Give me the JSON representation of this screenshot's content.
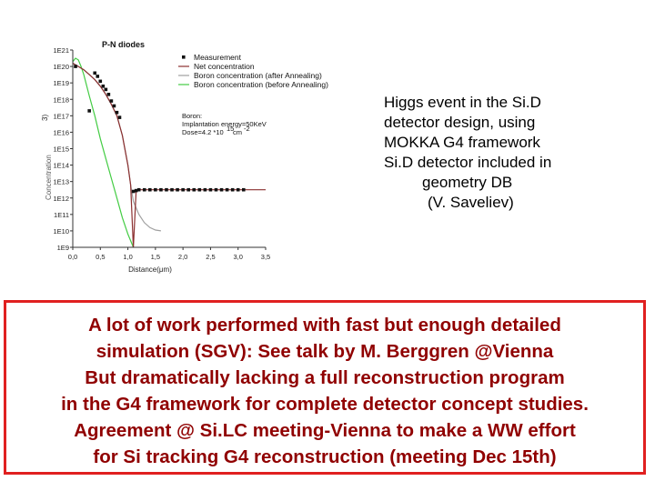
{
  "chart_data": {
    "type": "line",
    "title": "P-N diodes",
    "xlabel": "Distance(μm)",
    "ylabel": "Concentration",
    "ylabel_fragment": "3)",
    "xlim": [
      0.0,
      3.5
    ],
    "ylim_log10": [
      9,
      21
    ],
    "x_ticks": [
      "0,0",
      "0,5",
      "1,0",
      "1,5",
      "2,0",
      "2,5",
      "3,0",
      "3,5"
    ],
    "y_ticks": [
      "1E21",
      "1E20",
      "1E19",
      "1E18",
      "1E17",
      "1E16",
      "1E15",
      "1E14",
      "1E13",
      "1E12",
      "1E11",
      "1E10",
      "1E9"
    ],
    "legend_placement": "top-right",
    "series": [
      {
        "name": "Measurement",
        "kind": "points",
        "color": "#111111",
        "x": [
          0.05,
          0.3,
          0.4,
          0.45,
          0.5,
          0.55,
          0.6,
          0.65,
          0.7,
          0.75,
          0.8,
          0.85,
          1.1,
          1.15,
          1.2,
          1.3,
          1.4,
          1.5,
          1.6,
          1.7,
          1.8,
          1.9,
          2.0,
          2.1,
          2.2,
          2.3,
          2.4,
          2.5,
          2.6,
          2.7,
          2.8,
          2.9,
          3.0,
          3.1
        ],
        "y_log10": [
          20.0,
          17.3,
          19.6,
          19.4,
          19.1,
          18.8,
          18.6,
          18.3,
          17.9,
          17.6,
          17.2,
          16.9,
          12.4,
          12.45,
          12.5,
          12.5,
          12.5,
          12.5,
          12.5,
          12.5,
          12.5,
          12.5,
          12.5,
          12.5,
          12.5,
          12.5,
          12.5,
          12.5,
          12.5,
          12.5,
          12.5,
          12.5,
          12.5,
          12.5
        ]
      },
      {
        "name": "Net concentration",
        "kind": "line",
        "color": "#8b3030",
        "x": [
          0.0,
          0.1,
          0.2,
          0.3,
          0.4,
          0.5,
          0.6,
          0.7,
          0.8,
          0.9,
          1.0,
          1.05,
          1.1,
          1.15,
          1.2,
          1.5,
          2.0,
          3.0,
          3.5
        ],
        "y_log10": [
          20.2,
          20.0,
          19.8,
          19.5,
          19.2,
          18.8,
          18.3,
          17.7,
          17.0,
          15.8,
          14.0,
          12.8,
          9.0,
          12.5,
          12.5,
          12.5,
          12.5,
          12.5,
          12.5
        ]
      },
      {
        "name": "Boron concentration (after Annealing)",
        "kind": "line",
        "color": "#a0a0a0",
        "x": [
          0.0,
          0.1,
          0.2,
          0.3,
          0.4,
          0.5,
          0.6,
          0.7,
          0.8,
          0.9,
          1.0,
          1.05,
          1.1,
          1.2,
          1.3,
          1.4,
          1.5,
          1.6
        ],
        "y_log10": [
          20.2,
          20.0,
          19.8,
          19.5,
          19.2,
          18.8,
          18.3,
          17.7,
          17.0,
          15.8,
          14.0,
          12.8,
          11.8,
          11.0,
          10.5,
          10.2,
          10.05,
          10.0
        ]
      },
      {
        "name": "Boron concentration (before Annealing)",
        "kind": "line",
        "color": "#44cc44",
        "x": [
          0.0,
          0.05,
          0.1,
          0.15,
          0.2,
          0.3,
          0.4,
          0.5,
          0.6,
          0.7,
          0.8,
          0.9,
          1.0,
          1.1
        ],
        "y_log10": [
          20.3,
          20.5,
          20.4,
          20.0,
          19.5,
          18.2,
          17.0,
          15.6,
          14.4,
          13.2,
          12.0,
          10.8,
          9.8,
          9.0
        ]
      }
    ],
    "annotation_lines": [
      "Boron:",
      "Implantation energy=50KeV",
      "Dose=4.2 *10",
      "cm"
    ],
    "annotation_exponents": [
      "15",
      "-2"
    ]
  },
  "side_text": {
    "lines": [
      "Higgs event in the Si.D",
      "detector design, using",
      "MOKKA G4 framework",
      " Si.D detector included in",
      "geometry DB",
      "(V. Saveliev)"
    ]
  },
  "bottom_box": {
    "border_color": "#e02020",
    "text_color": "#900000",
    "lines": [
      "A lot of work performed with fast but enough detailed",
      "simulation (SGV): See talk by M. Berggren @Vienna",
      "But dramatically lacking a full reconstruction program",
      "in the G4 framework for complete detector concept studies.",
      "Agreement @ Si.LC meeting-Vienna to make a WW effort",
      "for Si tracking G4 reconstruction (meeting Dec 15th)"
    ]
  }
}
